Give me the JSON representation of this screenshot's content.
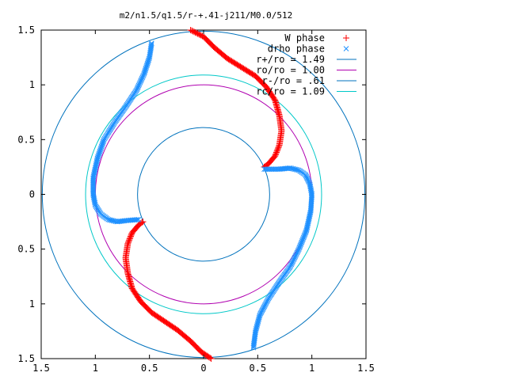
{
  "chart_data": {
    "type": "scatter",
    "title": "m2/n1.5/q1.5/r-+.41-j211/M0.0/512",
    "xlabel": "",
    "ylabel": "",
    "xlim": [
      -1.5,
      1.5
    ],
    "ylim": [
      -1.5,
      1.5
    ],
    "x_tick_values": [
      -1.5,
      -1,
      -0.5,
      0,
      0.5,
      1,
      1.5
    ],
    "x_tick_labels": [
      "1.5",
      "1",
      "0.5",
      "0",
      "0.5",
      "1",
      "1.5"
    ],
    "y_tick_values": [
      1.5,
      1,
      0.5,
      0,
      -0.5,
      -1,
      -1.5
    ],
    "y_tick_labels": [
      "1.5",
      "1",
      "0.5",
      "0",
      "0.5",
      "1",
      "1.5"
    ],
    "grid": false,
    "legend_position": "top-right",
    "series": [
      {
        "name": "W phase",
        "marker": "plus",
        "color": "#ff0000",
        "arms": [
          {
            "x": [
              -0.12,
              0.0,
              0.1,
              0.22,
              0.35,
              0.48,
              0.58,
              0.66,
              0.7,
              0.72,
              0.7,
              0.66,
              0.6,
              0.56
            ],
            "y": [
              1.5,
              1.44,
              1.34,
              1.24,
              1.16,
              1.08,
              0.98,
              0.86,
              0.72,
              0.58,
              0.45,
              0.35,
              0.28,
              0.25
            ]
          },
          {
            "x": [
              0.07,
              -0.02,
              -0.12,
              -0.24,
              -0.36,
              -0.48,
              -0.58,
              -0.66,
              -0.7,
              -0.72,
              -0.7,
              -0.66,
              -0.6,
              -0.56
            ],
            "y": [
              -1.5,
              -1.44,
              -1.34,
              -1.24,
              -1.16,
              -1.08,
              -0.98,
              -0.86,
              -0.72,
              -0.58,
              -0.45,
              -0.35,
              -0.28,
              -0.25
            ]
          }
        ]
      },
      {
        "name": "drho phase",
        "marker": "cross",
        "color": "#1e90ff",
        "arms": [
          {
            "x": [
              -0.48,
              -0.5,
              -0.55,
              -0.62,
              -0.72,
              -0.82,
              -0.92,
              -0.98,
              -1.02,
              -1.02,
              -1.0,
              -0.95,
              -0.88,
              -0.8,
              -0.72,
              -0.6
            ],
            "y": [
              1.38,
              1.25,
              1.1,
              0.95,
              0.8,
              0.66,
              0.5,
              0.33,
              0.15,
              0.0,
              -0.1,
              -0.18,
              -0.23,
              -0.25,
              -0.24,
              -0.23
            ]
          },
          {
            "x": [
              0.46,
              0.48,
              0.52,
              0.6,
              0.7,
              0.8,
              0.88,
              0.95,
              0.99,
              1.0,
              0.98,
              0.94,
              0.88,
              0.8,
              0.7,
              0.56
            ],
            "y": [
              -1.4,
              -1.25,
              -1.1,
              -0.95,
              -0.8,
              -0.66,
              -0.5,
              -0.33,
              -0.15,
              0.0,
              0.1,
              0.18,
              0.22,
              0.24,
              0.23,
              0.23
            ]
          }
        ]
      },
      {
        "name": "r+/ro = 1.49",
        "type": "circle",
        "radius": 1.49,
        "color": "#0072bd"
      },
      {
        "name": "ro/ro = 1.00",
        "type": "circle",
        "radius": 1.0,
        "color": "#b000b0"
      },
      {
        "name": "r-/ro = .61",
        "type": "circle",
        "radius": 0.61,
        "color": "#0072bd"
      },
      {
        "name": "rc/ro = 1.09",
        "type": "circle",
        "radius": 1.09,
        "color": "#00c8c8"
      }
    ]
  }
}
